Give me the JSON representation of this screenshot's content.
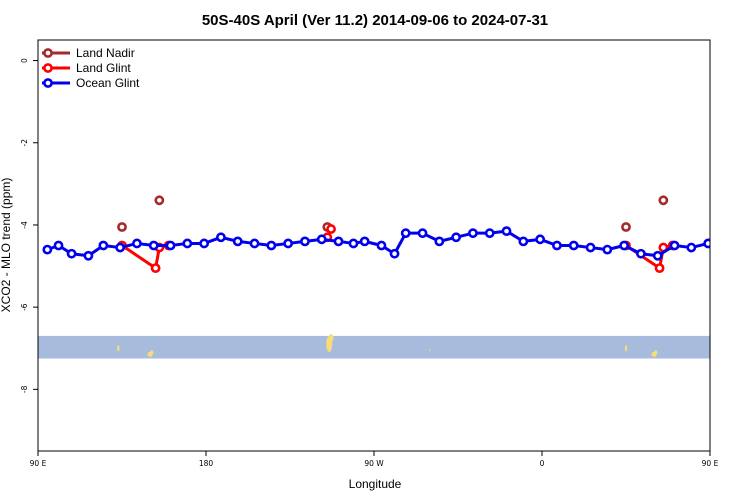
{
  "chart_data": {
    "type": "line",
    "title": "50S-40S April (Ver 11.2)   2014-09-06 to 2024-07-31",
    "xlabel": "Longitude",
    "ylabel": "XCO2 - MLO trend (ppm)",
    "xlim": [
      90,
      450
    ],
    "ylim": [
      -9.5,
      0.5
    ],
    "x_ticks": [
      {
        "value": 90,
        "label": "90 E"
      },
      {
        "value": 180,
        "label": "180"
      },
      {
        "value": 270,
        "label": "90 W"
      },
      {
        "value": 360,
        "label": "0"
      },
      {
        "value": 450,
        "label": "90 E"
      },
      {
        "value": 540,
        "label": "180"
      }
    ],
    "y_ticks": [
      0,
      -2,
      -4,
      -6,
      -8
    ],
    "legend_position": "top-left",
    "series": [
      {
        "name": "Land Nadir",
        "color": "#a52a2a",
        "points": [
          [
            135,
            -4.05
          ],
          [
            155,
            -3.4
          ],
          [
            245,
            -4.05
          ],
          [
            405,
            -4.05
          ],
          [
            425,
            -3.4
          ]
        ]
      },
      {
        "name": "Land Glint",
        "color": "#ff0000",
        "segments": [
          [
            [
              135,
              -4.5
            ],
            [
              153,
              -5.05
            ],
            [
              155,
              -4.55
            ],
            [
              160,
              -4.5
            ]
          ],
          [
            [
              245,
              -4.3
            ],
            [
              247,
              -4.1
            ]
          ],
          [
            [
              405,
              -4.5
            ],
            [
              423,
              -5.05
            ],
            [
              425,
              -4.55
            ],
            [
              430,
              -4.5
            ]
          ]
        ]
      },
      {
        "name": "Ocean Glint",
        "color": "#0000ee",
        "points": [
          [
            95,
            -4.6
          ],
          [
            101,
            -4.5
          ],
          [
            108,
            -4.7
          ],
          [
            117,
            -4.75
          ],
          [
            125,
            -4.5
          ],
          [
            134,
            -4.55
          ],
          [
            143,
            -4.45
          ],
          [
            152,
            -4.5
          ],
          [
            161,
            -4.5
          ],
          [
            170,
            -4.45
          ],
          [
            179,
            -4.45
          ],
          [
            188,
            -4.3
          ],
          [
            197,
            -4.4
          ],
          [
            206,
            -4.45
          ],
          [
            215,
            -4.5
          ],
          [
            224,
            -4.45
          ],
          [
            233,
            -4.4
          ],
          [
            242,
            -4.35
          ],
          [
            251,
            -4.4
          ],
          [
            259,
            -4.45
          ],
          [
            265,
            -4.4
          ],
          [
            274,
            -4.5
          ],
          [
            281,
            -4.7
          ],
          [
            287,
            -4.2
          ],
          [
            296,
            -4.2
          ],
          [
            305,
            -4.4
          ],
          [
            314,
            -4.3
          ],
          [
            323,
            -4.2
          ],
          [
            332,
            -4.2
          ],
          [
            341,
            -4.15
          ],
          [
            350,
            -4.4
          ],
          [
            359,
            -4.35
          ],
          [
            368,
            -4.5
          ],
          [
            377,
            -4.5
          ],
          [
            386,
            -4.55
          ],
          [
            395,
            -4.6
          ],
          [
            404,
            -4.5
          ],
          [
            413,
            -4.7
          ],
          [
            422,
            -4.75
          ],
          [
            431,
            -4.5
          ],
          [
            440,
            -4.55
          ],
          [
            449,
            -4.45
          ],
          [
            458,
            -4.5
          ],
          [
            467,
            -4.5
          ]
        ]
      }
    ],
    "map_band": {
      "y_range": [
        -6.7,
        -7.25
      ],
      "ocean_color": "#a7bcdd",
      "land_color": "#f8dc78"
    }
  }
}
